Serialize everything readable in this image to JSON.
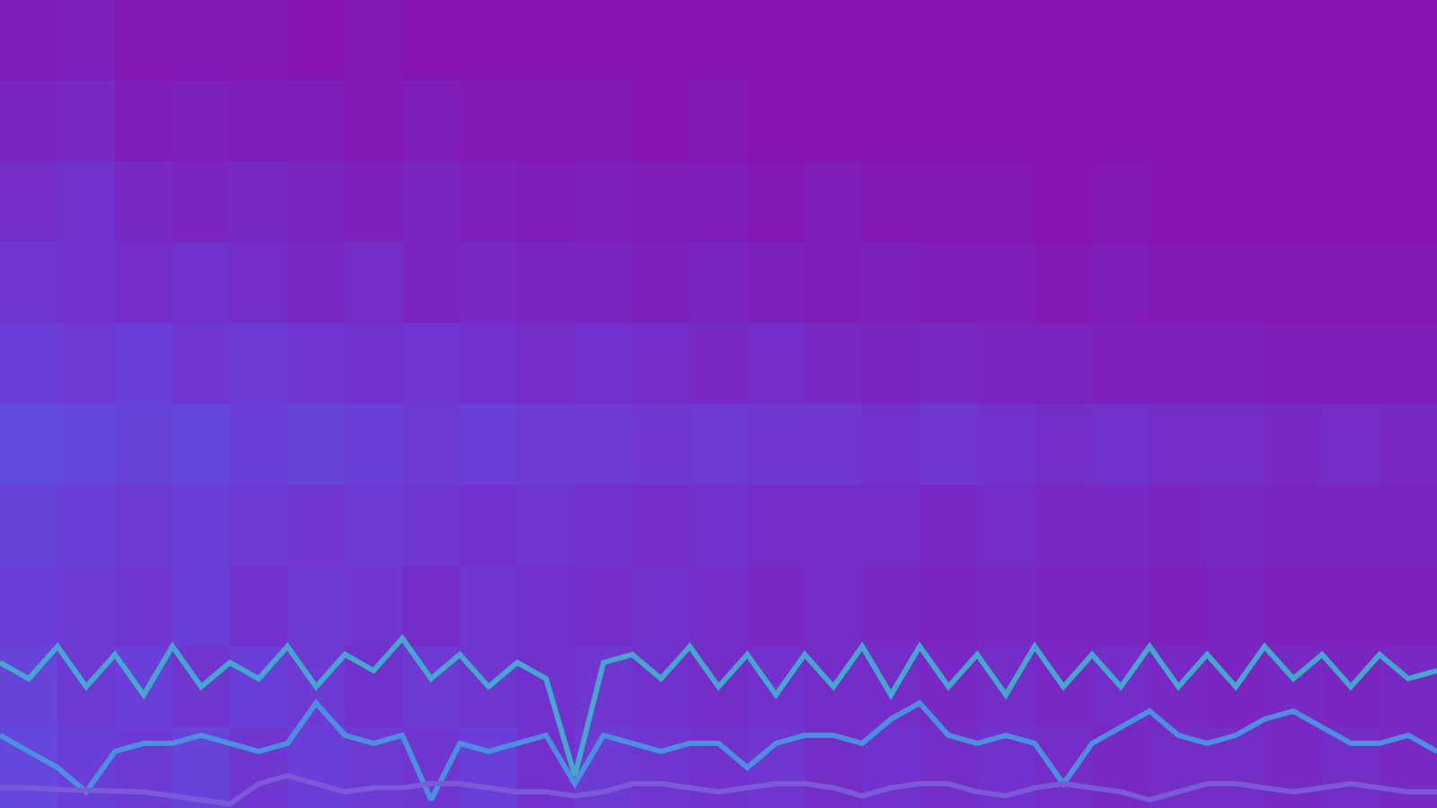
{
  "chart_data": {
    "type": "line",
    "xlim": [
      0,
      100
    ],
    "ylim": [
      0,
      100
    ],
    "tick_labels": false,
    "grid": false,
    "x": [
      0,
      2,
      4,
      6,
      8,
      10,
      12,
      14,
      16,
      18,
      20,
      22,
      24,
      26,
      28,
      30,
      32,
      34,
      36,
      38,
      40,
      42,
      44,
      46,
      48,
      50,
      52,
      54,
      56,
      58,
      60,
      62,
      64,
      66,
      68,
      70,
      72,
      74,
      76,
      78,
      80,
      82,
      84,
      86,
      88,
      90,
      92,
      94,
      96,
      98,
      100
    ],
    "series": [
      {
        "color": "#45a6cf",
        "values": [
          18,
          16,
          20,
          15,
          19,
          14,
          20,
          15,
          18,
          16,
          20,
          15,
          19,
          17,
          21,
          16,
          19,
          15,
          18,
          16,
          4,
          18,
          19,
          16,
          20,
          15,
          19,
          14,
          19,
          15,
          20,
          14,
          20,
          15,
          19,
          14,
          20,
          15,
          19,
          15,
          20,
          15,
          19,
          15,
          20,
          16,
          19,
          15,
          19,
          16,
          17
        ]
      },
      {
        "color": "#4c8fe0",
        "values": [
          9,
          7,
          5,
          2,
          7,
          8,
          8,
          9,
          8,
          7,
          8,
          13,
          9,
          8,
          9,
          1,
          8,
          7,
          8,
          9,
          3,
          9,
          8,
          7,
          8,
          8,
          5,
          8,
          9,
          9,
          8,
          11,
          13,
          9,
          8,
          9,
          8,
          3,
          8,
          10,
          12,
          9,
          8,
          9,
          11,
          12,
          10,
          8,
          8,
          9,
          7
        ]
      },
      {
        "color": "#7a5ad8",
        "values": [
          2.5,
          2.5,
          2.3,
          2.2,
          2,
          2,
          1.5,
          1,
          0.5,
          3,
          4,
          3,
          2,
          2.5,
          2.5,
          3,
          3,
          2.5,
          2,
          2,
          1.5,
          2,
          3,
          3,
          2.5,
          2,
          2.5,
          3,
          3,
          2.5,
          1.5,
          2.5,
          3,
          3,
          2,
          1.5,
          2.5,
          3,
          2.5,
          2,
          1,
          2,
          3,
          3,
          2.5,
          2,
          2.5,
          3,
          2.5,
          2,
          2
        ]
      }
    ],
    "heatmap": {
      "x": [
        2,
        6,
        10,
        14,
        18,
        22,
        26,
        30,
        34,
        38,
        42,
        46,
        50,
        54,
        58,
        62,
        66,
        70,
        74,
        78,
        82,
        86,
        90,
        94,
        98
      ],
      "y": [
        5,
        15,
        25,
        35,
        45,
        55,
        65,
        75,
        85,
        95
      ],
      "zlim": [
        0,
        1
      ],
      "cells": [
        [
          0.6,
          0.5,
          0.45,
          0.55,
          0.4,
          0.5,
          0.45,
          0.4,
          0.5,
          0.35,
          0.45,
          0.4,
          0.35,
          0.4,
          0.3,
          0.35,
          0.3,
          0.35,
          0.3,
          0.25,
          0.3,
          0.3,
          0.25,
          0.3,
          0.25
        ],
        [
          0.55,
          0.45,
          0.5,
          0.4,
          0.5,
          0.45,
          0.35,
          0.45,
          0.4,
          0.35,
          0.4,
          0.35,
          0.3,
          0.35,
          0.3,
          0.3,
          0.25,
          0.3,
          0.25,
          0.3,
          0.25,
          0.2,
          0.25,
          0.2,
          0.25
        ],
        [
          0.5,
          0.45,
          0.4,
          0.5,
          0.35,
          0.45,
          0.4,
          0.3,
          0.4,
          0.35,
          0.3,
          0.35,
          0.3,
          0.25,
          0.3,
          0.25,
          0.2,
          0.25,
          0.2,
          0.2,
          0.15,
          0.2,
          0.15,
          0.15,
          0.15
        ],
        [
          0.55,
          0.5,
          0.45,
          0.5,
          0.45,
          0.4,
          0.45,
          0.4,
          0.35,
          0.4,
          0.35,
          0.3,
          0.35,
          0.3,
          0.3,
          0.3,
          0.25,
          0.3,
          0.25,
          0.25,
          0.2,
          0.25,
          0.2,
          0.2,
          0.2
        ],
        [
          0.65,
          0.6,
          0.55,
          0.6,
          0.5,
          0.55,
          0.5,
          0.45,
          0.5,
          0.45,
          0.45,
          0.4,
          0.45,
          0.4,
          0.4,
          0.35,
          0.4,
          0.35,
          0.3,
          0.35,
          0.3,
          0.3,
          0.25,
          0.3,
          0.25
        ],
        [
          0.5,
          0.45,
          0.5,
          0.4,
          0.45,
          0.4,
          0.35,
          0.4,
          0.35,
          0.3,
          0.35,
          0.3,
          0.25,
          0.3,
          0.25,
          0.2,
          0.25,
          0.2,
          0.2,
          0.15,
          0.15,
          0.15,
          0.1,
          0.1,
          0.1
        ],
        [
          0.4,
          0.35,
          0.3,
          0.35,
          0.3,
          0.25,
          0.3,
          0.2,
          0.25,
          0.2,
          0.2,
          0.15,
          0.2,
          0.15,
          0.1,
          0.15,
          0.1,
          0.1,
          0.05,
          0.1,
          0.05,
          0.05,
          0.05,
          0.05,
          0.05
        ],
        [
          0.3,
          0.35,
          0.25,
          0.2,
          0.25,
          0.2,
          0.15,
          0.2,
          0.15,
          0.1,
          0.15,
          0.1,
          0.1,
          0.05,
          0.1,
          0.05,
          0.05,
          0.05,
          0,
          0.05,
          0,
          0,
          0,
          0,
          0
        ],
        [
          0.2,
          0.25,
          0.1,
          0.15,
          0.1,
          0.1,
          0.05,
          0.1,
          0.05,
          0.05,
          0.05,
          0,
          0.05,
          0,
          0,
          0,
          0,
          0,
          0,
          0,
          0,
          0,
          0,
          0,
          0
        ],
        [
          0.1,
          0.15,
          0.05,
          0.05,
          0.05,
          0,
          0.05,
          0,
          0,
          0,
          0,
          0,
          0,
          0,
          0,
          0,
          0,
          0,
          0,
          0,
          0,
          0,
          0,
          0,
          0
        ]
      ]
    }
  }
}
